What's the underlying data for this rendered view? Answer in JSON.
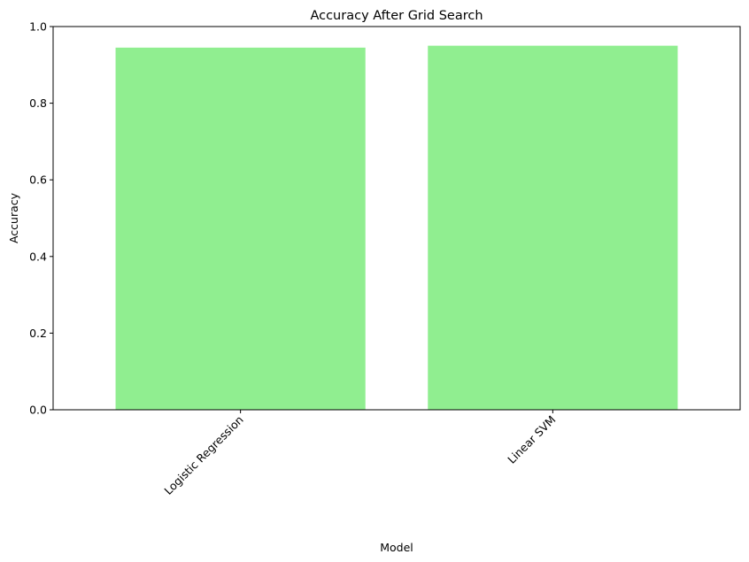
{
  "chart_data": {
    "type": "bar",
    "title": "Accuracy After Grid Search",
    "xlabel": "Model",
    "ylabel": "Accuracy",
    "categories": [
      "Logistic Regression",
      "Linear SVM"
    ],
    "values": [
      0.945,
      0.95
    ],
    "ylim": [
      0,
      1.0
    ],
    "yticks": [
      "0.0",
      "0.2",
      "0.4",
      "0.6",
      "0.8",
      "1.0"
    ],
    "x_tick_rotation_deg": 45,
    "bar_color": "#90ee90",
    "grid": false,
    "legend": "none"
  }
}
